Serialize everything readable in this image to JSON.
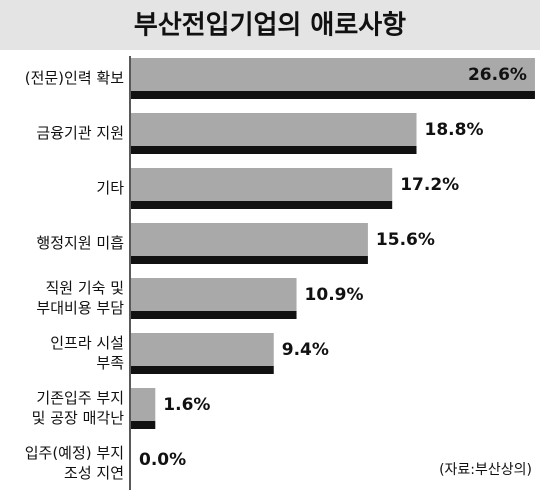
{
  "chart_data": {
    "type": "hbar",
    "title": "부산전입기업의 애로사항",
    "categories": [
      "(전문)인력 확보",
      "금융기관 지원",
      "기타",
      "행정지원 미흡",
      "직원 기숙 및\n부대비용 부담",
      "인프라 시설\n부족",
      "기존입주 부지\n및 공장 매각난",
      "입주(예정) 부지\n조성 지연"
    ],
    "values": [
      26.6,
      18.8,
      17.2,
      15.6,
      10.9,
      9.4,
      1.6,
      0.0
    ],
    "value_labels": [
      "26.6%",
      "18.8%",
      "17.2%",
      "15.6%",
      "10.9%",
      "9.4%",
      "1.6%",
      "0.0%"
    ],
    "color": "#a9a9a9",
    "shadow_color": "#111111",
    "xlim": [
      0,
      26.8
    ],
    "source": "(자료:부산상의)"
  }
}
